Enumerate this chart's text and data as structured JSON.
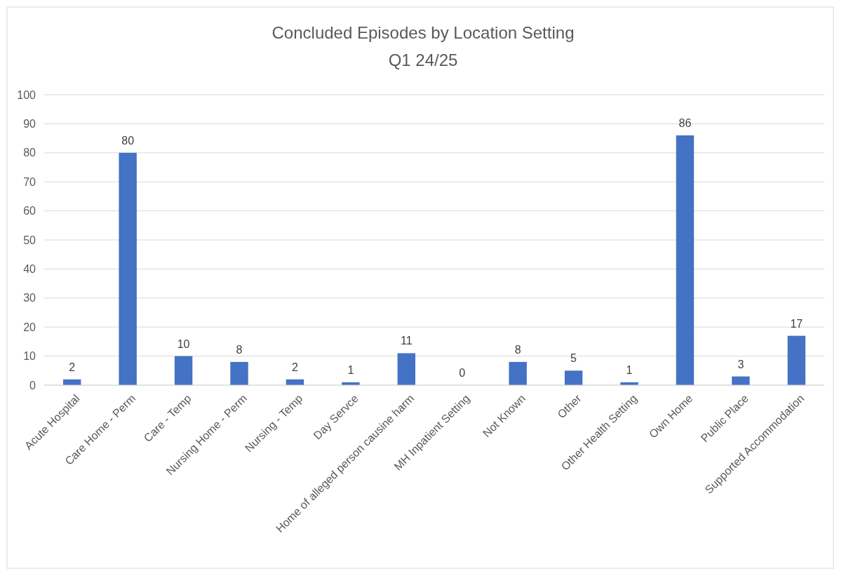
{
  "chart_data": {
    "type": "bar",
    "title": "Concluded Episodes by Location Setting",
    "subtitle": "Q1 24/25",
    "categories": [
      "Acute Hospital",
      "Care Home - Perm",
      "Care - Temp",
      "Nursing Home - Perm",
      "Nursing - Temp",
      "Day Servce",
      "Home of alleged person causine harm",
      "MH Inpatient Setting",
      "Not Known",
      "Other",
      "Other Health Setting",
      "Own Home",
      "Public Place",
      "Supported Accommodation"
    ],
    "values": [
      2,
      80,
      10,
      8,
      2,
      1,
      11,
      0,
      8,
      5,
      1,
      86,
      3,
      17
    ],
    "color": "#4472c4",
    "ylim": [
      0,
      100
    ],
    "yticks": [
      0,
      10,
      20,
      30,
      40,
      50,
      60,
      70,
      80,
      90,
      100
    ],
    "grid": "y",
    "data_labels": true
  }
}
